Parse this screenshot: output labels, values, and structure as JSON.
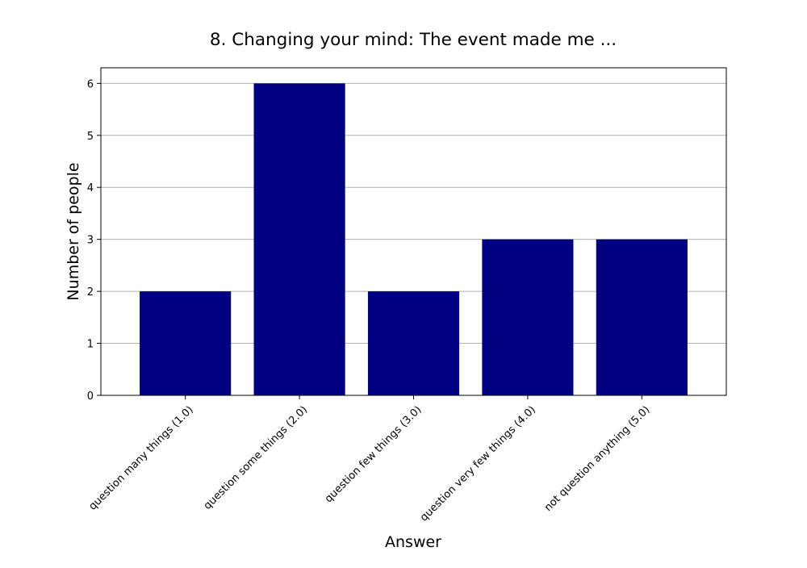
{
  "chart_data": {
    "type": "bar",
    "title": "8. Changing your mind: The event made me ...",
    "xlabel": "Answer",
    "ylabel": "Number of people",
    "categories": [
      "question many things (1.0)",
      "question some things (2.0)",
      "question few things (3.0)",
      "question very few things (4.0)",
      "not question anything (5.0)"
    ],
    "values": [
      2,
      6,
      2,
      3,
      3
    ],
    "ylim": [
      0,
      6.3
    ],
    "yticks": [
      0,
      1,
      2,
      3,
      4,
      5,
      6
    ],
    "grid": "y-major",
    "bar_color": "#000080",
    "grid_color": "#b0b0b0",
    "legend": "none"
  }
}
